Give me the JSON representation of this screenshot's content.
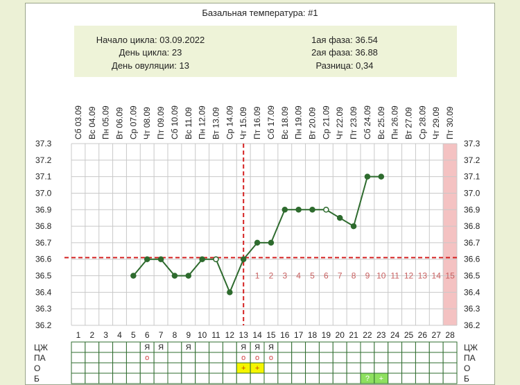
{
  "title": "Базальная температура: #1",
  "info": {
    "cycle_start": "Начало цикла: 03.09.2022",
    "cycle_day": "День цикла: 23",
    "ovulation_day": "День овуляции: 13",
    "phase1": "1ая фаза: 36.54",
    "phase2": "2ая фаза: 36.88",
    "difference": "Разница: 0,34"
  },
  "colors": {
    "info_bg": "#eef3d8",
    "line": "#2e6b2e",
    "marker_line": "#d42020",
    "period_bg": "#f4c2c2",
    "grid": "#c8c8c8",
    "phase_num": "#c86060",
    "ovulation_cell": "#f5f500",
    "lh_cell": "#8ee060",
    "mark_circle": "#d04040"
  },
  "chart_data": {
    "type": "line",
    "title": "Базальная температура: #1",
    "days": [
      1,
      2,
      3,
      4,
      5,
      6,
      7,
      8,
      9,
      10,
      11,
      12,
      13,
      14,
      15,
      16,
      17,
      18,
      19,
      20,
      21,
      22,
      23,
      24,
      25,
      26,
      27,
      28
    ],
    "dates": [
      "Сб 03.09",
      "Вс 04.09",
      "Пн 05.09",
      "Вт 06.09",
      "Ср 07.09",
      "Чт 08.09",
      "Пт 09.09",
      "Сб 10.09",
      "Вс 11.09",
      "Пн 12.09",
      "Вт 13.09",
      "Ср 14.09",
      "Чт 15.09",
      "Пт 16.09",
      "Сб 17.09",
      "Вс 18.09",
      "Пн 19.09",
      "Вт 20.09",
      "Ср 21.09",
      "Чт 22.09",
      "Пт 23.09",
      "Сб 24.09",
      "Вс 25.09",
      "Пн 26.09",
      "Вт 27.09",
      "Ср 28.09",
      "Чт 29.09",
      "Пт 30.09"
    ],
    "temperatures": [
      null,
      null,
      null,
      null,
      36.5,
      36.6,
      36.6,
      36.5,
      36.5,
      36.6,
      36.6,
      36.4,
      36.6,
      36.7,
      36.7,
      36.9,
      36.9,
      36.9,
      36.9,
      36.85,
      36.8,
      37.1,
      37.1,
      null,
      null,
      null,
      null,
      null
    ],
    "open_points": [
      11,
      19
    ],
    "y_ticks": [
      "36.2",
      "36.3",
      "36.4",
      "36.5",
      "36.6",
      "36.7",
      "36.8",
      "36.9",
      "37.0",
      "37.1",
      "37.2",
      "37.3"
    ],
    "ylim": [
      36.2,
      37.3
    ],
    "coverline": 36.61,
    "ovulation_day": 13,
    "luteal_labels": [
      "1",
      "2",
      "3",
      "4",
      "5",
      "6",
      "7",
      "8",
      "9",
      "10",
      "11",
      "12",
      "13",
      "14",
      "15"
    ],
    "period_day": 28,
    "grid": true
  },
  "rows": [
    {
      "label": "ЦЖ",
      "cells": {
        "6": "Я",
        "7": "Я",
        "9": "Я",
        "13": "Я",
        "14": "Я",
        "15": "Я"
      }
    },
    {
      "label": "ПА",
      "cells": {
        "6": "o",
        "13": "o",
        "14": "o",
        "15": "o"
      }
    },
    {
      "label": "О",
      "cells": {
        "13": "+",
        "14": "+"
      }
    },
    {
      "label": "Б",
      "cells": {
        "22": "?",
        "23": "+"
      }
    }
  ]
}
